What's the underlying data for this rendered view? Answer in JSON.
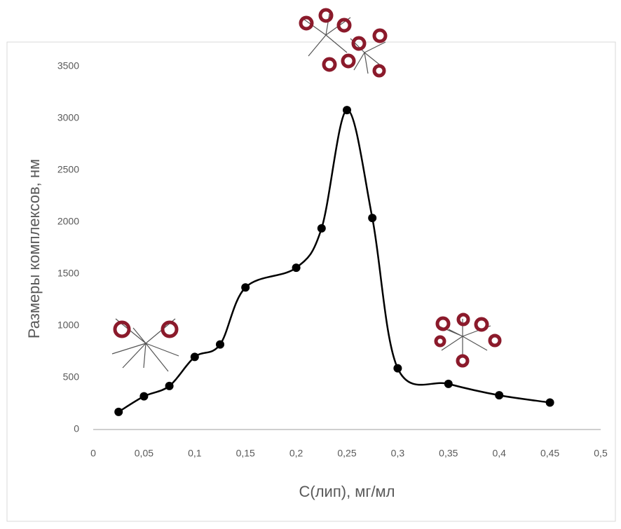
{
  "chart_data": {
    "type": "line",
    "x_label": "C(лип), мг/мл",
    "y_label": "Размеры комплексов, нм",
    "x": [
      0.025,
      0.05,
      0.075,
      0.1,
      0.125,
      0.15,
      0.2,
      0.225,
      0.25,
      0.275,
      0.3,
      0.35,
      0.4,
      0.45
    ],
    "series": [
      {
        "name": null,
        "color": "#000000",
        "values": [
          170,
          320,
          420,
          700,
          820,
          1370,
          1560,
          1940,
          3080,
          2040,
          590,
          440,
          330,
          260
        ]
      }
    ],
    "xlim": [
      0,
      0.5
    ],
    "xticks": [
      0,
      {
        "value": 0.05,
        "label": "0,05"
      },
      {
        "value": 0.1,
        "label": "0,1"
      },
      {
        "value": 0.15,
        "label": "0,15"
      },
      {
        "value": 0.2,
        "label": "0,2"
      },
      {
        "value": 0.25,
        "label": "0,25"
      },
      {
        "value": 0.3,
        "label": "0,3"
      },
      {
        "value": 0.35,
        "label": "0,35"
      },
      {
        "value": 0.4,
        "label": "0,4"
      },
      {
        "value": 0.45,
        "label": "0,45"
      },
      {
        "value": 0.5,
        "label": "0,5"
      }
    ],
    "ylim": [
      0,
      3500
    ],
    "yticks": [
      0,
      500,
      1000,
      1500,
      2000,
      2500,
      3000,
      3500
    ],
    "grid": false,
    "smooth": true
  }
}
